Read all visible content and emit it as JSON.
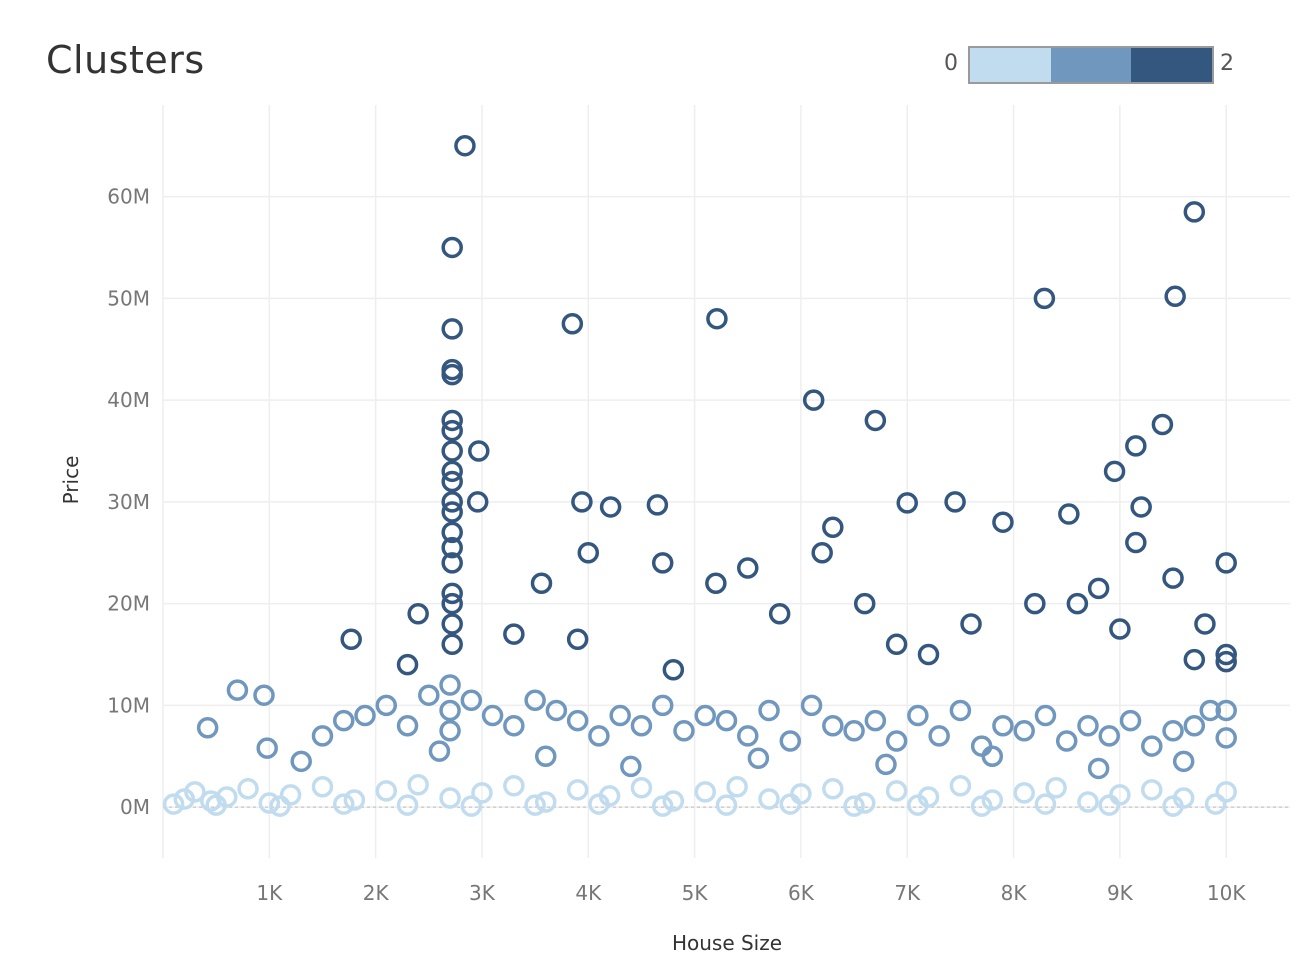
{
  "title": "Clusters",
  "legend": {
    "min_label": "0",
    "max_label": "2",
    "colors": [
      "#c0dcee",
      "#7097bd",
      "#34577f"
    ]
  },
  "chart_data": {
    "type": "scatter",
    "title": "Clusters",
    "xlabel": "House Size",
    "ylabel": "Price",
    "xlim": [
      0,
      10600
    ],
    "ylim": [
      -5000000,
      69000000
    ],
    "x_ticks": [
      1000,
      2000,
      3000,
      4000,
      5000,
      6000,
      7000,
      8000,
      9000,
      10000
    ],
    "x_tick_labels": [
      "1K",
      "2K",
      "3K",
      "4K",
      "5K",
      "6K",
      "7K",
      "8K",
      "9K",
      "10K"
    ],
    "y_ticks": [
      0,
      10000000,
      20000000,
      30000000,
      40000000,
      50000000,
      60000000
    ],
    "y_tick_labels": [
      "0M",
      "10M",
      "20M",
      "30M",
      "40M",
      "50M",
      "60M"
    ],
    "grid": true,
    "legend_position": "top-right",
    "series": [
      {
        "cluster": 0,
        "color": "#c0dcee",
        "x": [
          100,
          200,
          300,
          450,
          600,
          800,
          1000,
          1200,
          1500,
          1800,
          2100,
          2400,
          2700,
          3000,
          3300,
          3600,
          3900,
          4200,
          4500,
          4800,
          5100,
          5400,
          5700,
          6000,
          6300,
          6600,
          6900,
          7200,
          7500,
          7800,
          8100,
          8400,
          8700,
          9000,
          9300,
          9600,
          9900,
          10000,
          500,
          1100,
          1700,
          2300,
          2900,
          3500,
          4100,
          4700,
          5300,
          5900,
          6500,
          7100,
          7700,
          8300,
          8900,
          9500
        ],
        "y": [
          300000,
          800000,
          1500000,
          600000,
          1000000,
          1800000,
          400000,
          1200000,
          2000000,
          700000,
          1600000,
          2200000,
          900000,
          1400000,
          2100000,
          500000,
          1700000,
          1100000,
          1900000,
          600000,
          1500000,
          2000000,
          800000,
          1300000,
          1800000,
          400000,
          1600000,
          1000000,
          2100000,
          700000,
          1400000,
          1900000,
          500000,
          1200000,
          1700000,
          900000,
          300000,
          1500000,
          200000,
          100000,
          300000,
          200000,
          100000,
          200000,
          300000,
          100000,
          200000,
          300000,
          100000,
          200000,
          100000,
          300000,
          200000,
          100000
        ]
      },
      {
        "cluster": 1,
        "color": "#7097bd",
        "x": [
          420,
          700,
          950,
          980,
          1500,
          1700,
          1900,
          2100,
          2300,
          2500,
          2700,
          2700,
          2700,
          2900,
          3100,
          3300,
          3500,
          3700,
          3900,
          4100,
          4300,
          4500,
          4700,
          4900,
          5100,
          5300,
          5500,
          5700,
          5900,
          6100,
          6300,
          6500,
          6700,
          6900,
          7100,
          7300,
          7500,
          7700,
          7900,
          8100,
          8300,
          8500,
          8700,
          8900,
          9100,
          9300,
          9500,
          9700,
          9850,
          10000,
          10000,
          1300,
          2600,
          3600,
          4400,
          5600,
          6800,
          7800,
          8800,
          9600
        ],
        "y": [
          7800000,
          11500000,
          11000000,
          5800000,
          7000000,
          8500000,
          9000000,
          10000000,
          8000000,
          11000000,
          12000000,
          9500000,
          7500000,
          10500000,
          9000000,
          8000000,
          10500000,
          9500000,
          8500000,
          7000000,
          9000000,
          8000000,
          10000000,
          7500000,
          9000000,
          8500000,
          7000000,
          9500000,
          6500000,
          10000000,
          8000000,
          7500000,
          8500000,
          6500000,
          9000000,
          7000000,
          9500000,
          6000000,
          8000000,
          7500000,
          9000000,
          6500000,
          8000000,
          7000000,
          8500000,
          6000000,
          7500000,
          8000000,
          9500000,
          9500000,
          6800000,
          4500000,
          5500000,
          5000000,
          4000000,
          4800000,
          4200000,
          5000000,
          3800000,
          4500000
        ]
      },
      {
        "cluster": 2,
        "color": "#34577f",
        "x": [
          2840,
          2720,
          2720,
          2720,
          2720,
          2720,
          2720,
          2720,
          2720,
          2720,
          2720,
          2720,
          2720,
          2720,
          2720,
          2720,
          2720,
          2720,
          2720,
          3850,
          5210,
          9700,
          8290,
          9520,
          6120,
          6700,
          9400,
          9150,
          8950,
          2970,
          2960,
          3940,
          4210,
          4650,
          7000,
          7450,
          8520,
          9200,
          9150,
          10000,
          1770,
          2400,
          3560,
          5200,
          6300,
          7600,
          8800,
          9500,
          10000,
          4000,
          5500,
          6600,
          7900,
          9800,
          2300,
          3300,
          4700,
          6200,
          7200,
          8200,
          9000,
          9700,
          10000,
          3900,
          4800,
          5800,
          6900,
          8600
        ],
        "y": [
          65000000,
          55000000,
          47000000,
          43000000,
          42500000,
          38000000,
          37000000,
          35000000,
          33000000,
          32000000,
          30000000,
          29000000,
          27000000,
          25500000,
          24000000,
          21000000,
          20000000,
          18000000,
          16000000,
          47500000,
          48000000,
          58500000,
          50000000,
          50200000,
          40000000,
          38000000,
          37600000,
          35500000,
          33000000,
          35000000,
          30000000,
          30000000,
          29500000,
          29700000,
          29900000,
          30000000,
          28800000,
          29500000,
          26000000,
          24000000,
          16500000,
          19000000,
          22000000,
          22000000,
          27500000,
          18000000,
          21500000,
          22500000,
          15000000,
          25000000,
          23500000,
          20000000,
          28000000,
          18000000,
          14000000,
          17000000,
          24000000,
          25000000,
          15000000,
          20000000,
          17500000,
          14500000,
          14300000,
          16500000,
          13500000,
          19000000,
          16000000,
          20000000
        ]
      }
    ]
  }
}
